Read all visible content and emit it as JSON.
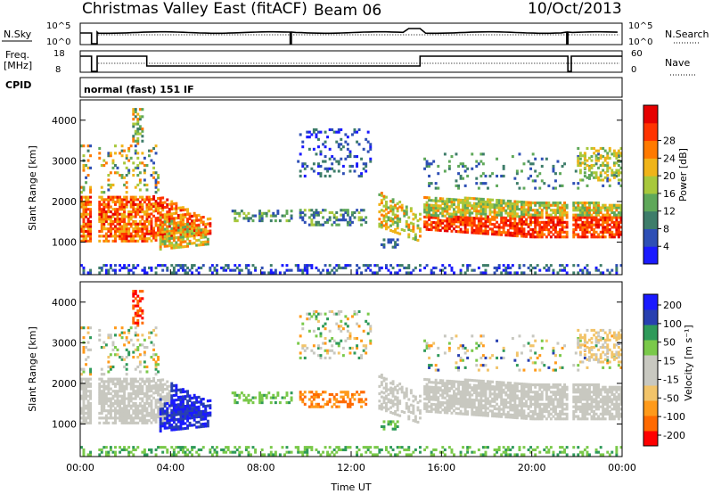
{
  "title": "Christmas Valley East (fitACF)",
  "beam": "Beam 06",
  "date": "10/Oct/2013",
  "status": {
    "nsky_label": "N.Sky",
    "nsky_ticks": [
      "10^5",
      "10^0"
    ],
    "nsearch_label": "N.Search",
    "nsearch_ticks": [
      "10^5",
      "10^0"
    ],
    "freq_label": "Freq.",
    "freq_unit": "[MHz]",
    "freq_ticks": [
      "18",
      "8"
    ],
    "nave_label": "Nave",
    "nave_ticks": [
      "60",
      "0"
    ],
    "cpid_label": "CPID",
    "cpid_value": "normal (fast) 151 IF"
  },
  "colors": {
    "power_scale": [
      "#1a1aff",
      "#2e4fb5",
      "#3e7d6a",
      "#5fa85a",
      "#a8c83c",
      "#f0b419",
      "#ff7a00",
      "#ff3300",
      "#e60000"
    ],
    "velocity_scale": [
      "#ff0000",
      "#ff6a00",
      "#ff9a1a",
      "#f2c46a",
      "#c8c8c0",
      "#c8c8c0",
      "#7ac94a",
      "#2f9a5a",
      "#2840b0",
      "#1a1aff"
    ]
  },
  "chart_data": [
    {
      "type": "heatmap",
      "name": "power",
      "ylabel": "Slant Range [km]",
      "yticks": [
        "1000",
        "2000",
        "3000",
        "4000"
      ],
      "ylim": [
        200,
        4500
      ],
      "xlim": [
        "00:00",
        "24:00"
      ],
      "colorbar_label": "Power [dB]",
      "colorbar_ticks": [
        "4",
        "8",
        "12",
        "16",
        "20",
        "24",
        "28"
      ]
    },
    {
      "type": "heatmap",
      "name": "velocity",
      "ylabel": "Slant Range [km]",
      "yticks": [
        "1000",
        "2000",
        "3000",
        "4000"
      ],
      "ylim": [
        200,
        4500
      ],
      "xlim": [
        "00:00",
        "24:00"
      ],
      "xticks": [
        "00:00",
        "04:00",
        "08:00",
        "12:00",
        "16:00",
        "20:00",
        "00:00"
      ],
      "xlabel": "Time UT",
      "colorbar_label": "Velocity [m s⁻¹]",
      "colorbar_ticks": [
        "200",
        "100",
        "50",
        "15",
        "-15",
        "-50",
        "-100",
        "-200"
      ]
    }
  ]
}
